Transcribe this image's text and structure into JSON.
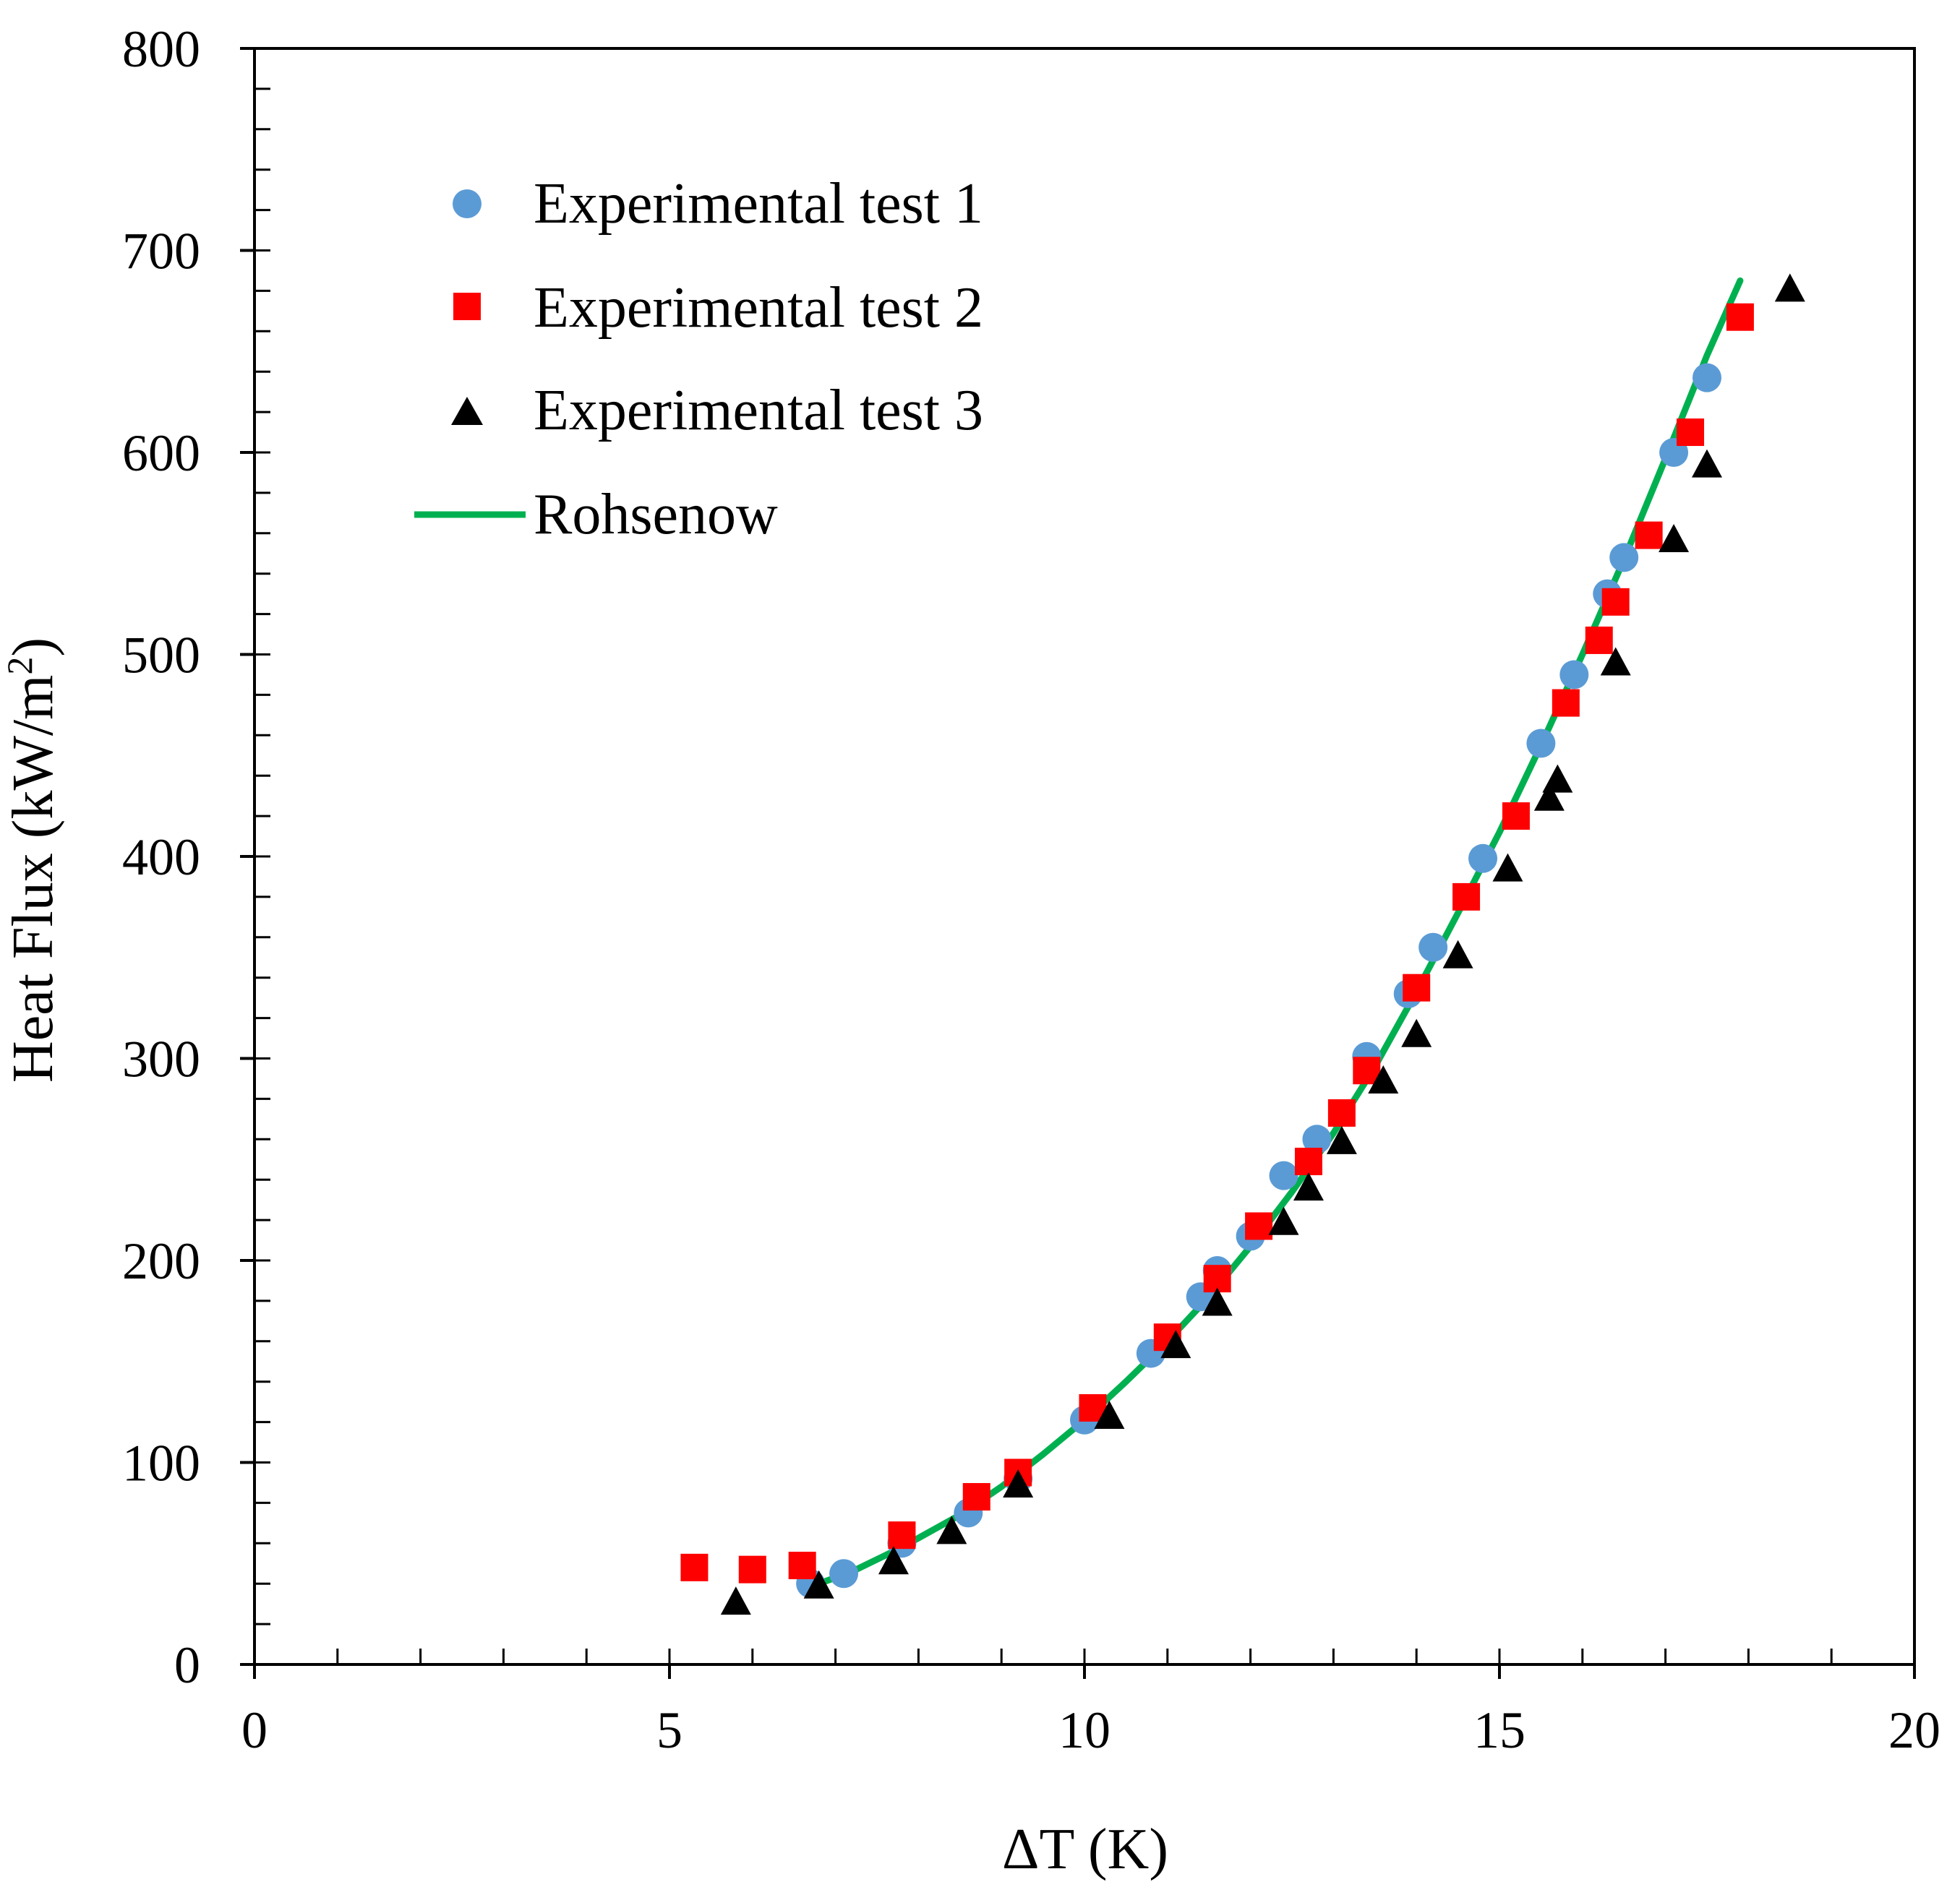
{
  "chart_data": {
    "type": "scatter",
    "title": "",
    "xlabel": "ΔT (K)",
    "ylabel_main": "Heat Flux (kW/m",
    "ylabel_sup": "2",
    "ylabel_close": ")",
    "xlim": [
      0,
      20
    ],
    "ylim": [
      0,
      800
    ],
    "x_ticks": [
      0,
      5,
      10,
      15,
      20
    ],
    "x_tick_labels": [
      "0",
      "5",
      "10",
      "15",
      "20"
    ],
    "y_ticks": [
      0,
      100,
      200,
      300,
      400,
      500,
      600,
      700,
      800
    ],
    "y_tick_labels": [
      "0",
      "100",
      "200",
      "300",
      "400",
      "500",
      "600",
      "700",
      "800"
    ],
    "x_minor_step": 1,
    "y_minor_step": 20,
    "grid": false,
    "legend_position": "top-left",
    "series": [
      {
        "name": "Experimental test 1",
        "marker": "circle",
        "color": "#5B9BD5",
        "points": [
          [
            6.7,
            40
          ],
          [
            7.1,
            45
          ],
          [
            7.8,
            60
          ],
          [
            8.6,
            75
          ],
          [
            9.2,
            92
          ],
          [
            10.0,
            121
          ],
          [
            10.8,
            154
          ],
          [
            11.4,
            182
          ],
          [
            11.6,
            195
          ],
          [
            12.0,
            212
          ],
          [
            12.4,
            242
          ],
          [
            12.8,
            260
          ],
          [
            13.4,
            301
          ],
          [
            13.9,
            332
          ],
          [
            14.2,
            355
          ],
          [
            14.8,
            399
          ],
          [
            15.5,
            456
          ],
          [
            15.9,
            490
          ],
          [
            16.3,
            530
          ],
          [
            16.5,
            548
          ],
          [
            17.1,
            600
          ],
          [
            17.5,
            637
          ]
        ]
      },
      {
        "name": "Experimental test 2",
        "marker": "square",
        "color": "#FF0000",
        "points": [
          [
            5.3,
            48
          ],
          [
            6.0,
            47
          ],
          [
            6.6,
            49
          ],
          [
            7.8,
            64
          ],
          [
            8.7,
            83
          ],
          [
            9.2,
            95
          ],
          [
            10.1,
            127
          ],
          [
            11.0,
            162
          ],
          [
            11.6,
            191
          ],
          [
            12.1,
            217
          ],
          [
            12.7,
            249
          ],
          [
            13.1,
            273
          ],
          [
            13.4,
            294
          ],
          [
            14.0,
            335
          ],
          [
            14.6,
            380
          ],
          [
            15.2,
            420
          ],
          [
            15.8,
            476
          ],
          [
            16.2,
            507
          ],
          [
            16.4,
            526
          ],
          [
            16.8,
            559
          ],
          [
            17.3,
            610
          ],
          [
            17.9,
            667
          ]
        ]
      },
      {
        "name": "Experimental test 3",
        "marker": "triangle",
        "color": "#000000",
        "points": [
          [
            5.8,
            30
          ],
          [
            6.8,
            38
          ],
          [
            7.7,
            50
          ],
          [
            8.4,
            65
          ],
          [
            9.2,
            88
          ],
          [
            10.3,
            122
          ],
          [
            11.1,
            157
          ],
          [
            11.6,
            178
          ],
          [
            12.4,
            218
          ],
          [
            12.7,
            235
          ],
          [
            13.1,
            258
          ],
          [
            13.6,
            288
          ],
          [
            14.0,
            311
          ],
          [
            14.5,
            350
          ],
          [
            15.1,
            393
          ],
          [
            15.6,
            428
          ],
          [
            15.7,
            437
          ],
          [
            16.4,
            495
          ],
          [
            17.1,
            556
          ],
          [
            17.5,
            593
          ],
          [
            18.5,
            680
          ]
        ]
      },
      {
        "name": "Rohsenow",
        "marker": "line",
        "color": "#00B050",
        "points": [
          [
            6.8,
            40
          ],
          [
            7.2,
            46
          ],
          [
            7.8,
            58
          ],
          [
            8.5,
            74
          ],
          [
            9.0,
            88
          ],
          [
            9.5,
            104
          ],
          [
            10.0,
            121
          ],
          [
            10.5,
            140
          ],
          [
            11.0,
            160
          ],
          [
            11.5,
            182
          ],
          [
            12.0,
            207
          ],
          [
            12.5,
            234
          ],
          [
            13.0,
            263
          ],
          [
            13.5,
            296
          ],
          [
            14.0,
            333
          ],
          [
            14.5,
            372
          ],
          [
            15.0,
            412
          ],
          [
            15.5,
            455
          ],
          [
            16.0,
            500
          ],
          [
            16.5,
            547
          ],
          [
            17.0,
            597
          ],
          [
            17.5,
            648
          ],
          [
            17.9,
            685
          ]
        ]
      }
    ]
  }
}
